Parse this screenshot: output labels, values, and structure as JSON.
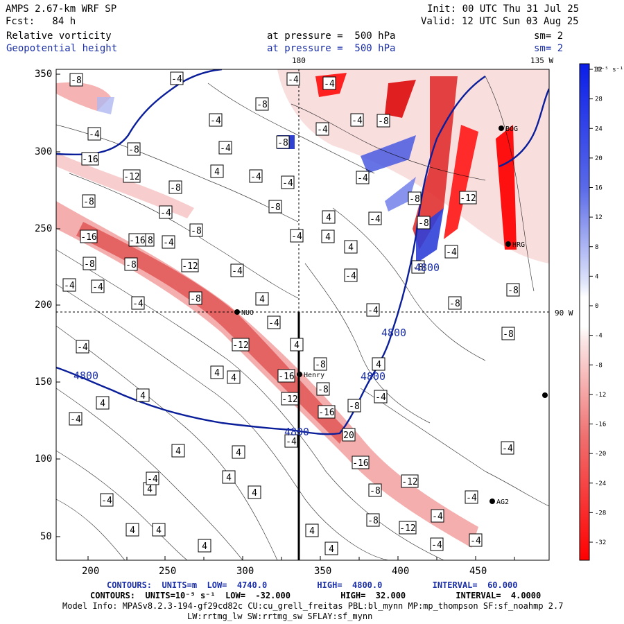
{
  "header": {
    "model_title": "AMPS 2.67-km WRF SP",
    "init": "Init: 00 UTC Thu 31 Jul 25",
    "forecast": "Fcst:   84 h",
    "valid": "Valid: 12 UTC Sun 03 Aug 25",
    "field1_name": "Relative vorticity",
    "field1_level": "at pressure =  500 hPa",
    "field1_smooth": "sm= 2",
    "field2_name": "Geopotential height",
    "field2_level": "at pressure =  500 hPa",
    "field2_smooth": "sm= 2"
  },
  "geo_labels": {
    "lon_180": "180",
    "lon_135w": "135 W",
    "lat_90w": "90 W"
  },
  "axes": {
    "x_ticks": [
      "200",
      "250",
      "300",
      "350",
      "400",
      "450"
    ],
    "y_ticks": [
      "350",
      "300",
      "250",
      "200",
      "150",
      "100",
      "50"
    ]
  },
  "colorbar": {
    "unit": "10⁻⁵ s⁻¹",
    "levels": [
      "32",
      "28",
      "24",
      "20",
      "16",
      "12",
      "8",
      "4",
      "0",
      "-4",
      "-8",
      "-12",
      "-16",
      "-20",
      "-24",
      "-28",
      "-32"
    ],
    "top_color": "#0a1ee8",
    "bottom_color": "#ff0000"
  },
  "stations": [
    {
      "name": "BOG"
    },
    {
      "name": "HRG"
    },
    {
      "name": "NUO"
    },
    {
      "name": "Henry"
    },
    {
      "name": "AG2"
    }
  ],
  "height_contour_label": "4800",
  "vort_labels": [
    "-8",
    "-4",
    "-8",
    "-4",
    "-8",
    "-8",
    "-4",
    "-4",
    "-16",
    "-8",
    "-4",
    "-4",
    "-12",
    "-8",
    "-8",
    "-4",
    "-4",
    "-8",
    "-4",
    "-8",
    "-12",
    "-4",
    "-8",
    "-4",
    "-4",
    "-4",
    "-16",
    "-16",
    "-8",
    "-8",
    "-4",
    "-4",
    "-8",
    "-12",
    "-4",
    "4",
    "4",
    "-4",
    "-8",
    "-8",
    "-4",
    "-8",
    "-4",
    "-8",
    "4",
    "-12",
    "-8",
    "-4",
    "4",
    "4",
    "4",
    "4",
    "-16",
    "-8",
    "-12",
    "-16",
    "-4",
    "20",
    "-16",
    "-8",
    "-12",
    "-8",
    "-4",
    "-8",
    "-4",
    "-12",
    "-4",
    "-4",
    "-8",
    "-4",
    "-8",
    "-4",
    "-4",
    "4",
    "4",
    "4",
    "4",
    "4",
    "4",
    "4",
    "4",
    "4",
    "4",
    "4",
    "4",
    "-4",
    "-4",
    "-4",
    "-4",
    "-4",
    "4",
    "4",
    "-4"
  ],
  "footer": {
    "contours_height": "CONTOURS:  UNITS=m  LOW=  4740.0          HIGH=  4800.0          INTERVAL=  60.000",
    "contours_vort": "CONTOURS:  UNITS=10⁻⁵ s⁻¹  LOW=  -32.000          HIGH=  32.000          INTERVAL=  4.0000",
    "model_info": "Model Info: MPASv8.2.3-194-gf29cd82c CU:cu_grell_freitas PBL:bl_mynn MP:mp_thompson SF:sf_noahmp 2.7",
    "model_info2": "LW:rrtmg_lw SW:rrtmg_sw SFLAY:sf_mynn"
  }
}
